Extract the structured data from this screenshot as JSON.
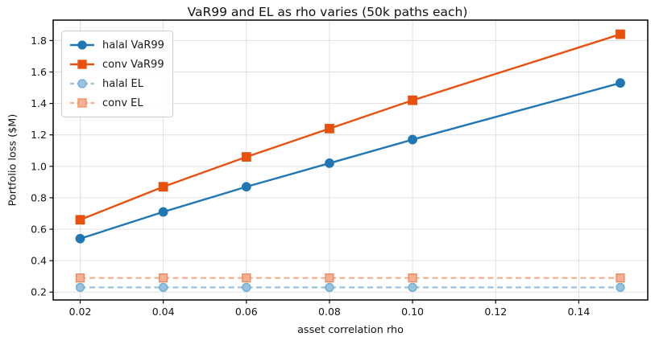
{
  "title": "VaR99 and EL as rho varies (50k paths each)",
  "chart_data": {
    "type": "line",
    "title": "VaR99 and EL as rho varies (50k paths each)",
    "xlabel": "asset correlation rho",
    "ylabel": "Portfolio loss ($M)",
    "x": [
      0.02,
      0.04,
      0.06,
      0.08,
      0.1,
      0.15
    ],
    "series": [
      {
        "name": "halal VaR99",
        "values": [
          0.54,
          0.71,
          0.87,
          1.02,
          1.17,
          1.53
        ],
        "color": "#1f77b4",
        "edge": "#1f77b4",
        "marker": "circle",
        "linestyle": "solid"
      },
      {
        "name": "conv VaR99",
        "values": [
          0.66,
          0.87,
          1.06,
          1.24,
          1.42,
          1.84
        ],
        "color": "#e8500e",
        "edge": "#e8500e",
        "marker": "square",
        "linestyle": "solid"
      },
      {
        "name": "halal EL",
        "values": [
          0.23,
          0.23,
          0.23,
          0.23,
          0.23,
          0.23
        ],
        "color": "#9ac2dd",
        "edge": "#6aaed6",
        "marker": "circle",
        "linestyle": "dashed"
      },
      {
        "name": "conv EL",
        "values": [
          0.29,
          0.29,
          0.29,
          0.29,
          0.29,
          0.29
        ],
        "color": "#f4b092",
        "edge": "#f08a5c",
        "marker": "square",
        "linestyle": "dashed"
      }
    ],
    "xticks": [
      0.02,
      0.04,
      0.06,
      0.08,
      0.1,
      0.12,
      0.14
    ],
    "xtick_labels": [
      "0.02",
      "0.04",
      "0.06",
      "0.08",
      "0.10",
      "0.12",
      "0.14"
    ],
    "yticks": [
      0.2,
      0.4,
      0.6,
      0.8,
      1.0,
      1.2,
      1.4,
      1.6,
      1.8
    ],
    "ytick_labels": [
      "0.2",
      "0.4",
      "0.6",
      "0.8",
      "1.0",
      "1.2",
      "1.4",
      "1.6",
      "1.8"
    ],
    "xlim": [
      0.0135,
      0.1566
    ],
    "ylim": [
      0.15,
      1.93
    ],
    "grid": true,
    "legend_position": "upper left"
  }
}
